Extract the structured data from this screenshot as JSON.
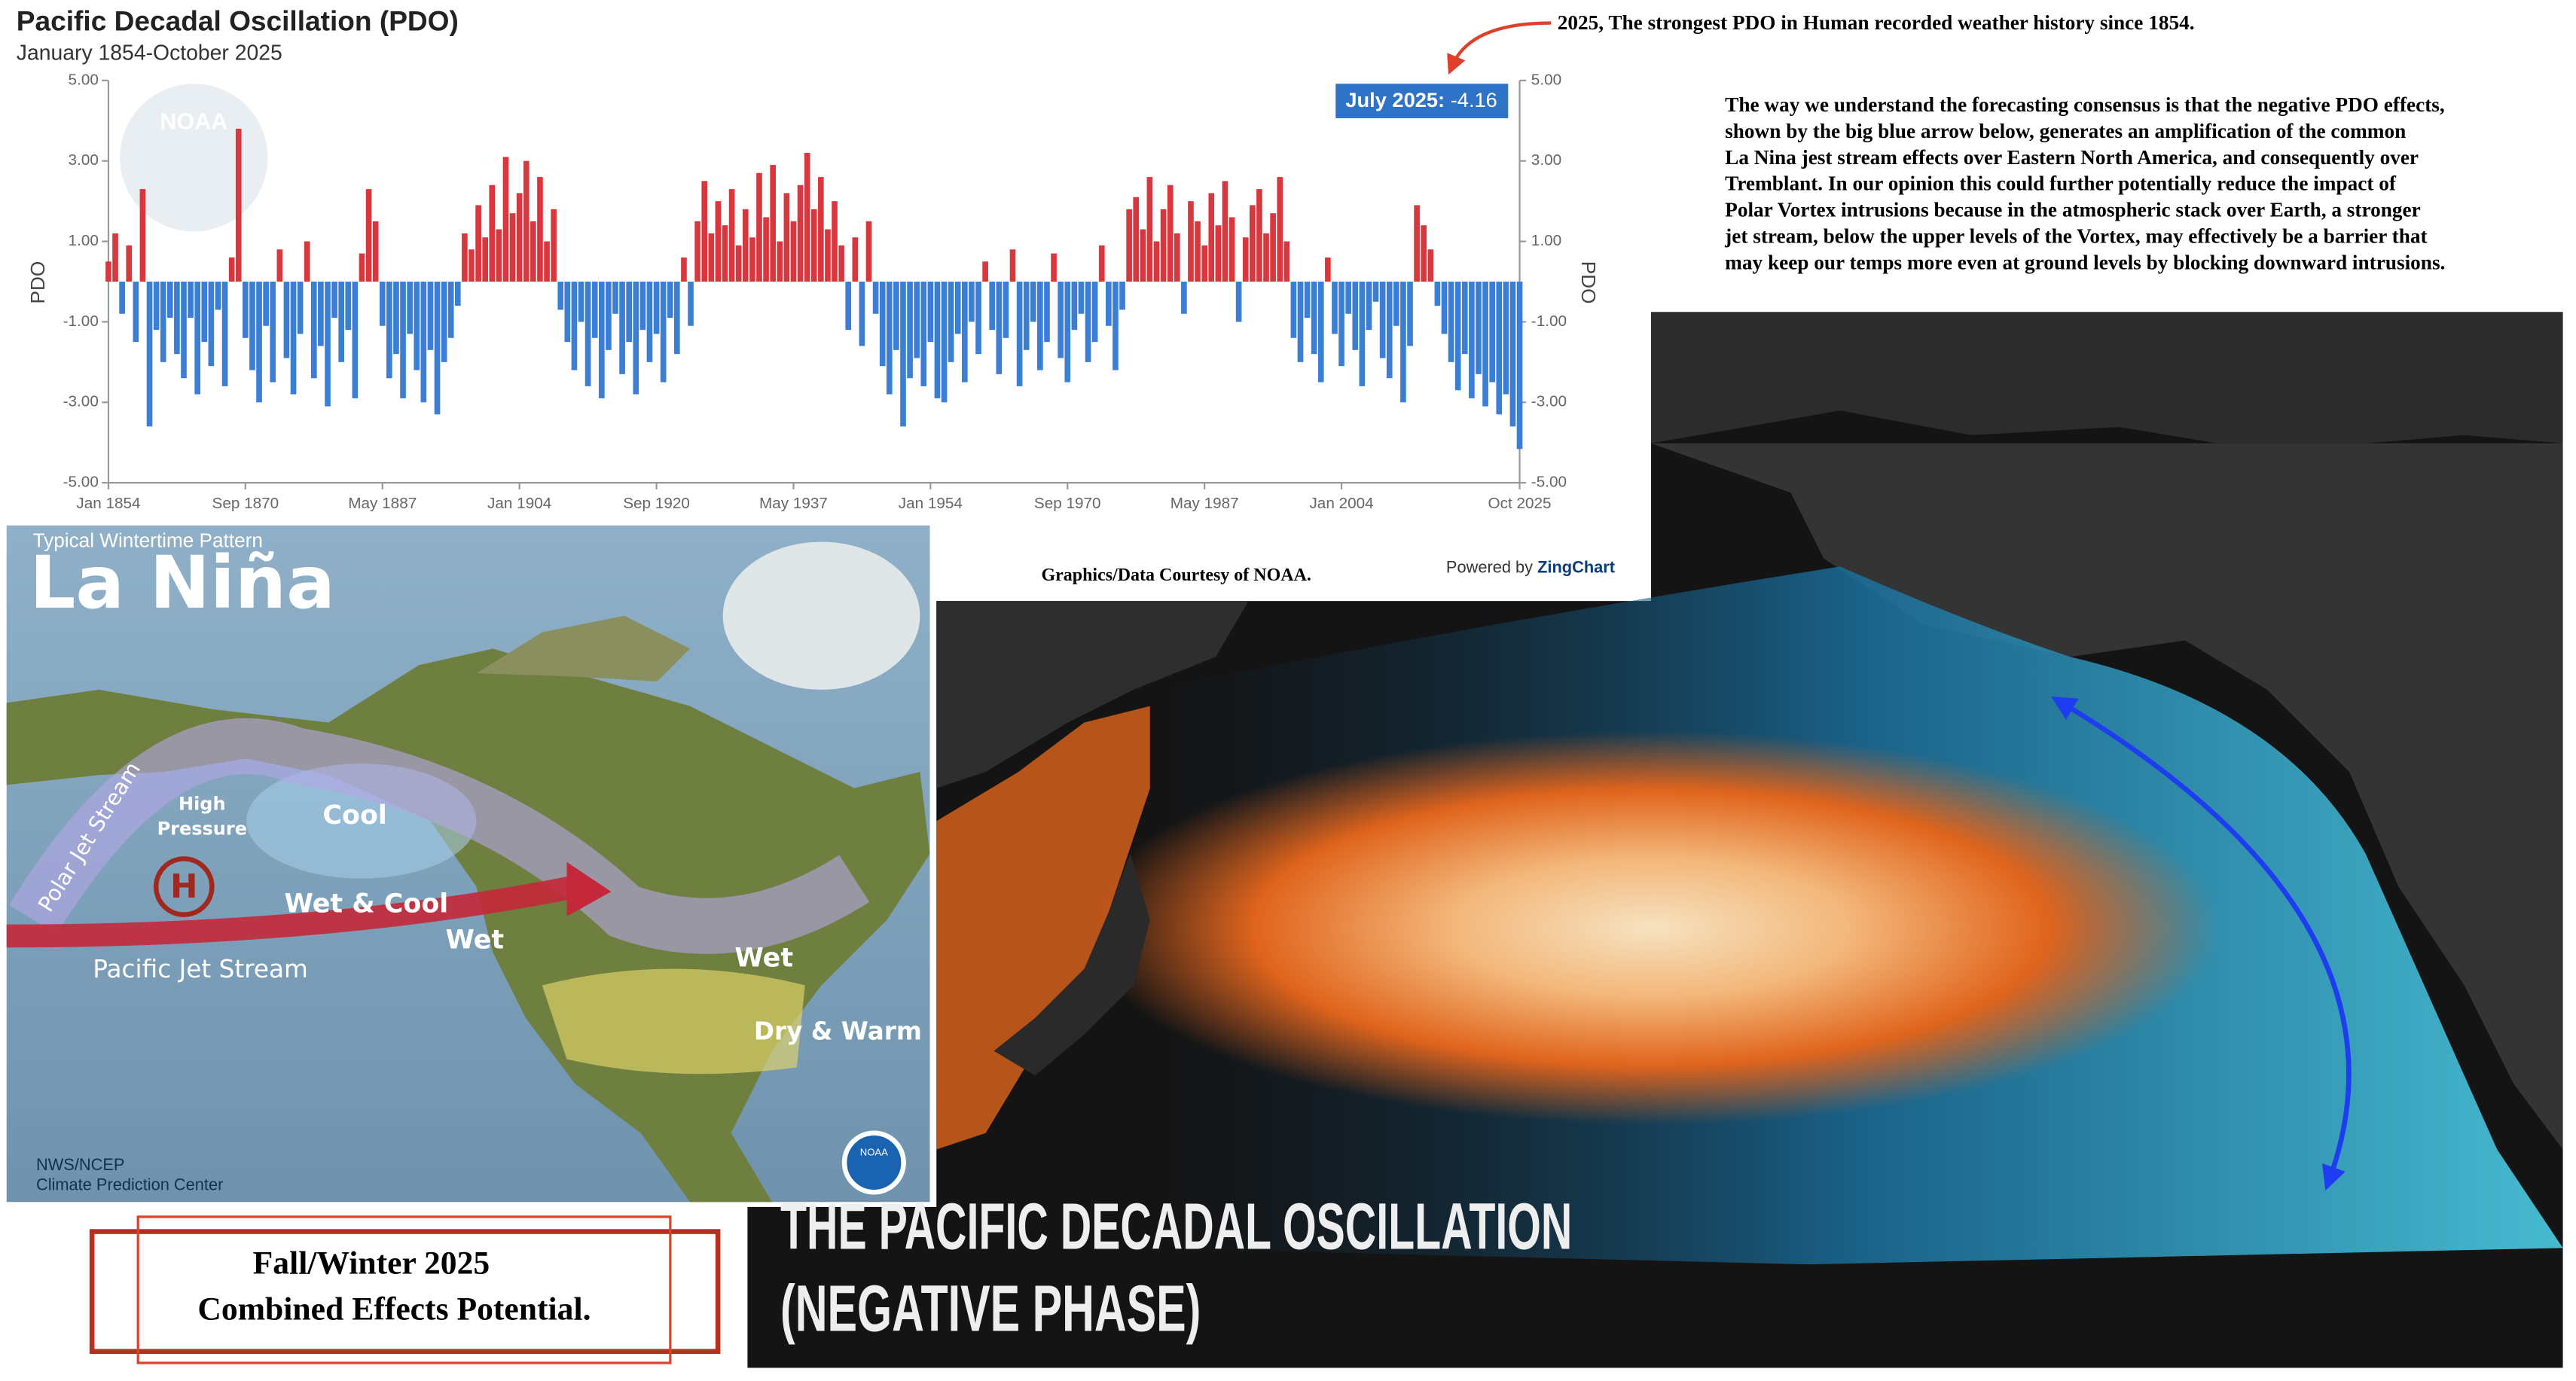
{
  "chart_data": {
    "type": "bar",
    "title": "Pacific Decadal Oscillation (PDO)",
    "subtitle": "January 1854-October 2025",
    "y_label": "PDO",
    "y2_label": "PDO",
    "positive_color": "#d9363e",
    "negative_color": "#3a7fd5",
    "categories": [
      "Jan 1854",
      null,
      null,
      null,
      null,
      null,
      null,
      null,
      null,
      null,
      null,
      null,
      null,
      null,
      null,
      null,
      null,
      null,
      null,
      null,
      "Sep 1870",
      null,
      null,
      null,
      null,
      null,
      null,
      null,
      null,
      null,
      null,
      null,
      null,
      null,
      null,
      null,
      null,
      null,
      null,
      null,
      "May 1887",
      null,
      null,
      null,
      null,
      null,
      null,
      null,
      null,
      null,
      null,
      null,
      null,
      null,
      null,
      null,
      null,
      null,
      null,
      null,
      "Jan 1904",
      null,
      null,
      null,
      null,
      null,
      null,
      null,
      null,
      null,
      null,
      null,
      null,
      null,
      null,
      null,
      null,
      null,
      null,
      null,
      "Sep 1920",
      null,
      null,
      null,
      null,
      null,
      null,
      null,
      null,
      null,
      null,
      null,
      null,
      null,
      null,
      null,
      null,
      null,
      null,
      null,
      "May 1937",
      null,
      null,
      null,
      null,
      null,
      null,
      null,
      null,
      null,
      null,
      null,
      null,
      null,
      null,
      null,
      null,
      null,
      null,
      null,
      "Jan 1954",
      null,
      null,
      null,
      null,
      null,
      null,
      null,
      null,
      null,
      null,
      null,
      null,
      null,
      null,
      null,
      null,
      null,
      null,
      null,
      "Sep 1970",
      null,
      null,
      null,
      null,
      null,
      null,
      null,
      null,
      null,
      null,
      null,
      null,
      null,
      null,
      null,
      null,
      null,
      null,
      null,
      "May 1987",
      null,
      null,
      null,
      null,
      null,
      null,
      null,
      null,
      null,
      null,
      null,
      null,
      null,
      null,
      null,
      null,
      null,
      null,
      null,
      "Jan 2004",
      null,
      null,
      null,
      null,
      null,
      null,
      null,
      null,
      null,
      null,
      null,
      null,
      null,
      null,
      null,
      null,
      null,
      null,
      null,
      null,
      null,
      null,
      null,
      null,
      null,
      "Oct 2025"
    ],
    "values": [
      0.5,
      1.2,
      -0.8,
      0.9,
      -1.5,
      2.3,
      -3.6,
      -1.2,
      -2.0,
      -0.9,
      -1.8,
      -2.4,
      -0.9,
      -2.8,
      -1.5,
      -2.1,
      -0.7,
      -2.6,
      0.6,
      3.8,
      -1.4,
      -2.2,
      -3.0,
      -1.1,
      -2.5,
      0.8,
      -1.9,
      -2.8,
      -1.3,
      1.0,
      -2.4,
      -1.6,
      -3.1,
      -0.9,
      -2.0,
      -1.2,
      -2.9,
      0.7,
      2.3,
      1.5,
      -1.1,
      -2.4,
      -1.8,
      -2.9,
      -1.3,
      -2.2,
      -3.0,
      -1.7,
      -3.3,
      -2.0,
      -1.4,
      -0.6,
      1.2,
      0.8,
      1.9,
      1.1,
      2.4,
      1.3,
      3.1,
      1.7,
      2.2,
      3.0,
      1.5,
      2.6,
      1.0,
      1.8,
      -0.7,
      -1.5,
      -2.2,
      -1.0,
      -2.6,
      -1.4,
      -2.9,
      -1.7,
      -0.8,
      -2.3,
      -1.5,
      -2.8,
      -1.2,
      -2.0,
      -1.3,
      -2.5,
      -0.9,
      -1.8,
      0.6,
      -1.1,
      1.5,
      2.5,
      1.2,
      2.0,
      1.4,
      2.3,
      0.9,
      1.8,
      1.1,
      2.7,
      1.6,
      2.9,
      1.0,
      2.2,
      1.5,
      2.4,
      3.2,
      1.8,
      2.6,
      1.3,
      2.0,
      0.9,
      -1.2,
      1.1,
      -1.6,
      1.5,
      -0.8,
      -2.1,
      -2.8,
      -1.7,
      -3.6,
      -2.4,
      -1.9,
      -2.6,
      -1.5,
      -2.9,
      -3.0,
      -2.0,
      -1.3,
      -2.5,
      -1.0,
      -1.8,
      0.5,
      -1.2,
      -2.3,
      -1.4,
      0.8,
      -2.6,
      -1.7,
      -1.0,
      -2.2,
      -1.5,
      0.7,
      -1.9,
      -2.5,
      -1.2,
      -0.8,
      -2.0,
      -1.5,
      0.9,
      -1.1,
      -2.2,
      -0.7,
      1.8,
      2.1,
      1.3,
      2.6,
      1.0,
      1.8,
      2.4,
      1.2,
      -0.8,
      2.0,
      1.5,
      0.9,
      2.2,
      1.4,
      2.5,
      1.6,
      -1.0,
      1.1,
      1.9,
      2.3,
      1.2,
      1.7,
      2.6,
      1.0,
      -1.4,
      -2.0,
      -0.9,
      -1.8,
      -2.5,
      0.6,
      -1.3,
      -2.1,
      -0.8,
      -1.7,
      -2.6,
      -1.2,
      -0.5,
      -1.9,
      -2.4,
      -1.1,
      -3.0,
      -1.6,
      1.9,
      1.4,
      0.8,
      -0.6,
      -1.3,
      -2.0,
      -2.7,
      -1.8,
      -2.9,
      -2.3,
      -3.1,
      -2.5,
      -3.3,
      -2.8,
      -3.6,
      -4.16
    ],
    "ylim": [
      -5,
      5
    ],
    "yticks": [
      {
        "value": 5,
        "label": "5.00"
      },
      {
        "value": 3,
        "label": "3.00"
      },
      {
        "value": 1,
        "label": "1.00"
      },
      {
        "value": -1,
        "label": "-1.00"
      },
      {
        "value": -3,
        "label": "-3.00"
      },
      {
        "value": -5,
        "label": "-5.00"
      }
    ],
    "y2lim": [
      -5,
      5
    ],
    "y2ticks": [
      {
        "value": 5,
        "label": "5.00"
      },
      {
        "value": 3,
        "label": "3.00"
      },
      {
        "value": 1,
        "label": "1.00"
      },
      {
        "value": -1,
        "label": "-1.00"
      },
      {
        "value": -3,
        "label": "-3.00"
      },
      {
        "value": -5,
        "label": "-5.00"
      }
    ],
    "tooltip": {
      "label": "July 2025:",
      "value": -4.16
    },
    "credit": "Powered by",
    "credit_brand": "ZingChart",
    "watermark": "NOAA"
  },
  "annotation": "2025, The strongest PDO in Human recorded weather history since 1854.",
  "commentary": [
    "The way we understand the forecasting consensus is that the negative PDO effects,",
    "shown by the big blue arrow below, generates an amplification of the common",
    "La Nina jest stream effects over Eastern North America, and consequently over",
    "Tremblant. In our opinion this could further potentially reduce the impact of",
    "Polar Vortex intrusions because in the atmospheric stack over Earth, a stronger",
    "jet stream, below the upper levels of  the Vortex, may effectively be a barrier that",
    "may keep our temps more even at ground levels by blocking downward intrusions."
  ],
  "source_note": "Graphics/Data Courtesy of NOAA.",
  "map": {
    "subtitle": "Typical Wintertime Pattern",
    "title": "La Niña",
    "labels": [
      "High",
      "Pressure",
      "Cool",
      "H",
      "Wet & Cool",
      "Wet",
      "Pacific Jet Stream",
      "Polar Jet Stream",
      "Wet",
      "Dry & Warm"
    ],
    "credit": [
      "NWS/NCEP",
      "Climate Prediction Center"
    ],
    "logo": "NOAA"
  },
  "image_caption": [
    "THE PACIFIC DECADAL OSCILLATION",
    "(NEGATIVE PHASE)"
  ],
  "box": [
    "Fall/Winter 2025",
    "Combined Effects Potential."
  ]
}
